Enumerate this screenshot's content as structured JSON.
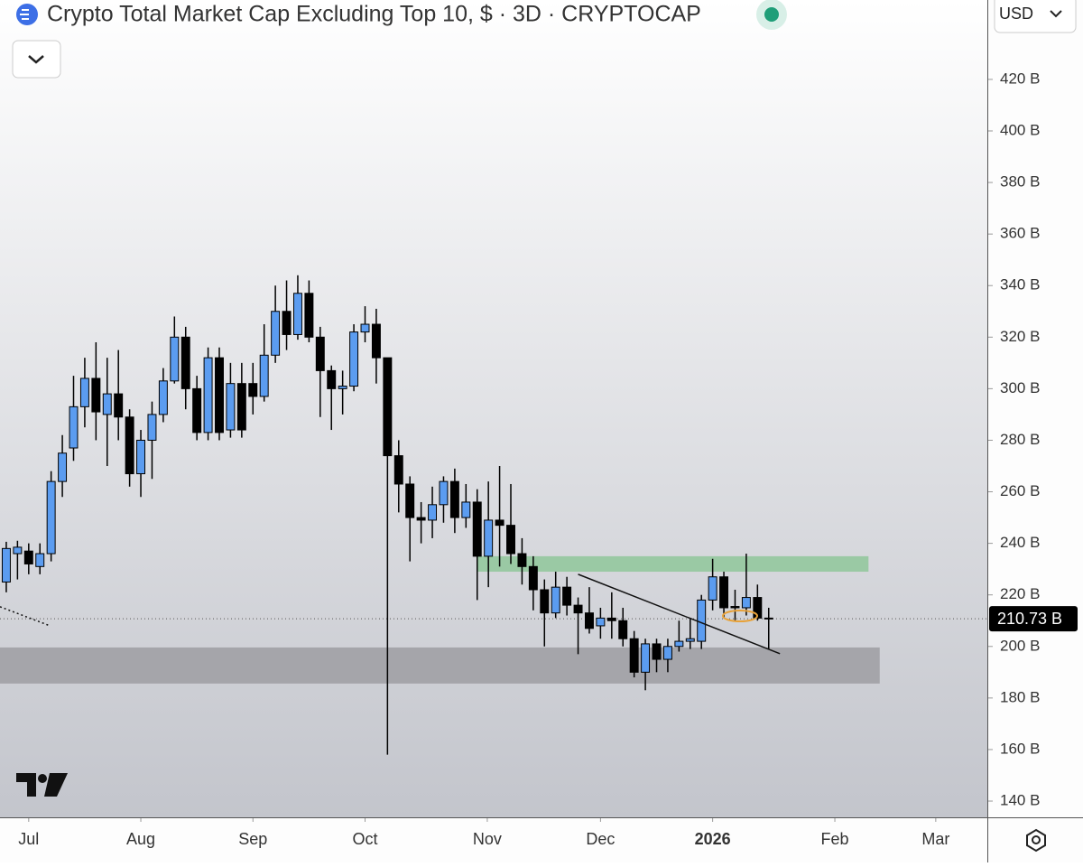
{
  "chart_data": {
    "type": "candlestick",
    "title": "Crypto Total Market Cap Excluding Top 10, $ · 3D · CRYPTOCAP",
    "currency": "USD",
    "open": [
      225,
      236,
      237,
      231,
      236,
      264,
      277,
      293,
      304,
      290,
      298,
      289,
      267,
      280,
      290,
      303,
      320,
      300,
      283,
      312,
      284,
      302,
      302,
      297,
      313,
      330,
      321,
      337,
      320,
      307,
      300,
      301,
      322,
      325,
      312,
      274,
      263,
      250,
      249,
      255,
      264,
      250,
      256,
      235,
      249,
      247,
      236,
      231,
      222,
      213,
      223,
      216,
      213,
      208,
      211,
      210,
      203,
      190,
      201,
      195,
      200,
      202,
      202,
      218,
      227,
      215.5,
      215,
      219,
      211
    ],
    "high": [
      240.6,
      241,
      240,
      240,
      268,
      282,
      305,
      312,
      318,
      312,
      315,
      292,
      284,
      295,
      308,
      328,
      324,
      305,
      316,
      316,
      310,
      310,
      310,
      325,
      340,
      342,
      344,
      342,
      324,
      309,
      307,
      325,
      332,
      331,
      312,
      280,
      266,
      256,
      262,
      266,
      269,
      263,
      261,
      264,
      270,
      263,
      242,
      235,
      226,
      229,
      227,
      219,
      223,
      215,
      221,
      215,
      206,
      203,
      203,
      203,
      210,
      211,
      220,
      234,
      229,
      222,
      236,
      224,
      215
    ],
    "low": [
      221,
      226,
      228,
      228,
      233,
      258,
      272,
      285,
      280,
      270,
      280,
      262,
      258,
      265,
      287,
      302,
      292,
      280,
      280,
      280,
      281,
      281,
      290,
      295,
      310,
      315,
      319,
      318,
      289,
      284,
      290,
      299,
      318,
      302,
      158,
      252,
      233,
      240,
      242,
      248,
      244,
      246,
      218,
      223,
      231,
      232,
      224,
      214,
      200,
      211,
      212,
      197,
      205,
      203,
      203,
      200,
      188,
      183,
      190,
      190,
      198,
      199,
      199,
      214,
      211,
      210,
      212,
      210,
      199
    ],
    "close": [
      238,
      238.5,
      232,
      236,
      264,
      275,
      293,
      304,
      291,
      298,
      289,
      267,
      280,
      290,
      303,
      320,
      300,
      283,
      312,
      283,
      302,
      284,
      297,
      313,
      330,
      321,
      337,
      320,
      307,
      300,
      301,
      322,
      325,
      312,
      274,
      263,
      250,
      249,
      255,
      264,
      250,
      256,
      235,
      249,
      247,
      236,
      231,
      222,
      213,
      223,
      216,
      213,
      207,
      211,
      210,
      203,
      190,
      201,
      195,
      200,
      202,
      203,
      218,
      227,
      215,
      215,
      219,
      211,
      210.73
    ],
    "up_color": "#5b9cf0",
    "down_color": "#000000",
    "xlim": [
      -0.56,
      87.5
    ],
    "xticks": [
      {
        "value": 2,
        "label": "Jul"
      },
      {
        "value": 12,
        "label": "Aug"
      },
      {
        "value": 22,
        "label": "Sep"
      },
      {
        "value": 32,
        "label": "Oct"
      },
      {
        "value": 42.9,
        "label": "Nov"
      },
      {
        "value": 53,
        "label": "Dec"
      },
      {
        "value": 63,
        "label": "2026"
      },
      {
        "value": 73.9,
        "label": "Feb"
      },
      {
        "value": 82.9,
        "label": "Mar"
      }
    ],
    "ylim": [
      133.7,
      450.8
    ],
    "yticks": [
      {
        "value": 140,
        "label": "140 B"
      },
      {
        "value": 160,
        "label": "160 B"
      },
      {
        "value": 180,
        "label": "180 B"
      },
      {
        "value": 200,
        "label": "200 B"
      },
      {
        "value": 220,
        "label": "220 B"
      },
      {
        "value": 240,
        "label": "240 B"
      },
      {
        "value": 260,
        "label": "260 B"
      },
      {
        "value": 280,
        "label": "280 B"
      },
      {
        "value": 300,
        "label": "300 B"
      },
      {
        "value": 320,
        "label": "320 B"
      },
      {
        "value": 340,
        "label": "340 B"
      },
      {
        "value": 360,
        "label": "360 B"
      },
      {
        "value": 380,
        "label": "380 B"
      },
      {
        "value": 400,
        "label": "400 B"
      },
      {
        "value": 420,
        "label": "420 B"
      }
    ],
    "last_price": {
      "value": 210.73,
      "label": "210.73 B"
    },
    "zones": [
      {
        "x": [
          42.0,
          76.9
        ],
        "y": [
          229,
          235
        ],
        "color": "#8fc79a"
      },
      {
        "x": [
          -0.56,
          77.9
        ],
        "y": [
          185.6,
          199.6
        ],
        "color": "#9d9ea2"
      }
    ],
    "lines": [
      {
        "x": [
          51.0,
          69.0
        ],
        "y": [
          228,
          197.2
        ],
        "dash": false
      },
      {
        "x": [
          -0.56,
          3.9
        ],
        "y": [
          215.4,
          208
        ],
        "dash": true
      }
    ]
  }
}
